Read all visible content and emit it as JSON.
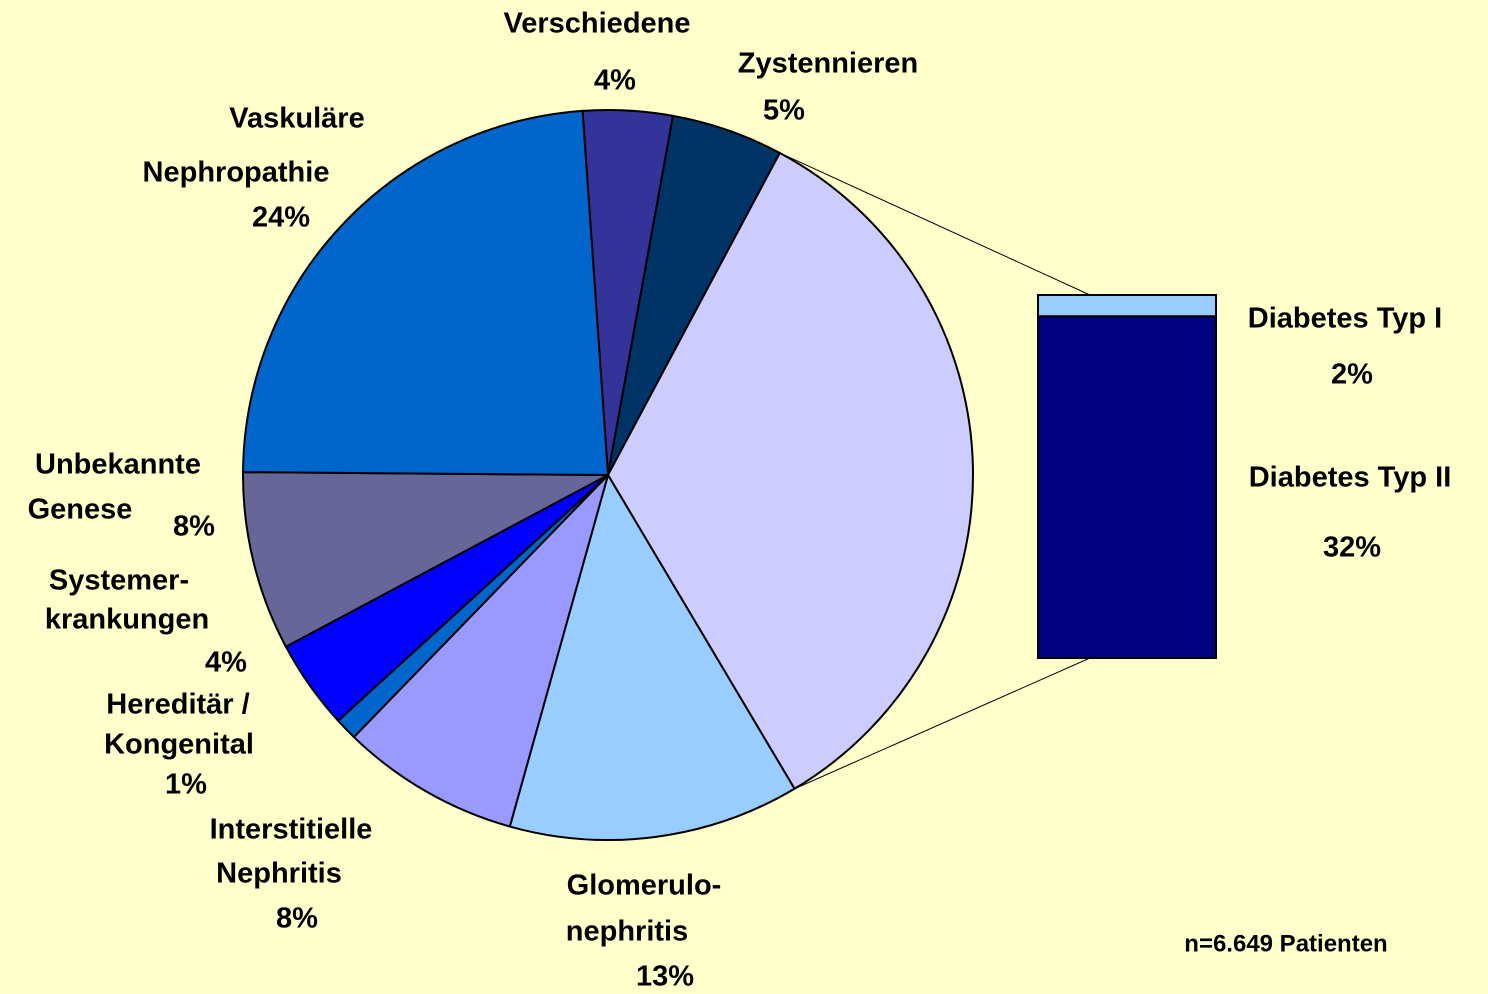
{
  "chart_data": {
    "type": "pie-of-bar",
    "categories": [
      [
        "Verschiedene"
      ],
      [
        "Zystennieren"
      ],
      null,
      [
        "Glomerulo-",
        "nephritis"
      ],
      [
        "Interstitielle",
        "Nephritis"
      ],
      [
        "Hereditär /",
        "Kongenital"
      ],
      [
        "Systemer-",
        "krankungen"
      ],
      [
        "Unbekannte",
        "Genese"
      ],
      [
        "Vaskuläre",
        "Nephropathie"
      ]
    ],
    "values": [
      4,
      5,
      null,
      13,
      8,
      1,
      4,
      8,
      24
    ],
    "value_labels": [
      "4%",
      "5%",
      null,
      "13%",
      "8%",
      "1%",
      "4%",
      "8%",
      "24%"
    ],
    "colors": [
      "#333399",
      "#003366",
      "#CCCCFF",
      "#99CCFF",
      "#9999FF",
      "#0066CC",
      "#0000FF",
      "#666699",
      "#0066CC"
    ],
    "bar": {
      "series": [
        {
          "name": "Diabetes Typ I",
          "color": "#99CCFF",
          "values": [
            2
          ],
          "value_labels": [
            "2%"
          ]
        },
        {
          "name": "Diabetes Typ II",
          "color": "#000080",
          "values": [
            32
          ],
          "value_labels": [
            "32%"
          ]
        }
      ]
    },
    "annotation": "n=6.649 Patienten"
  }
}
